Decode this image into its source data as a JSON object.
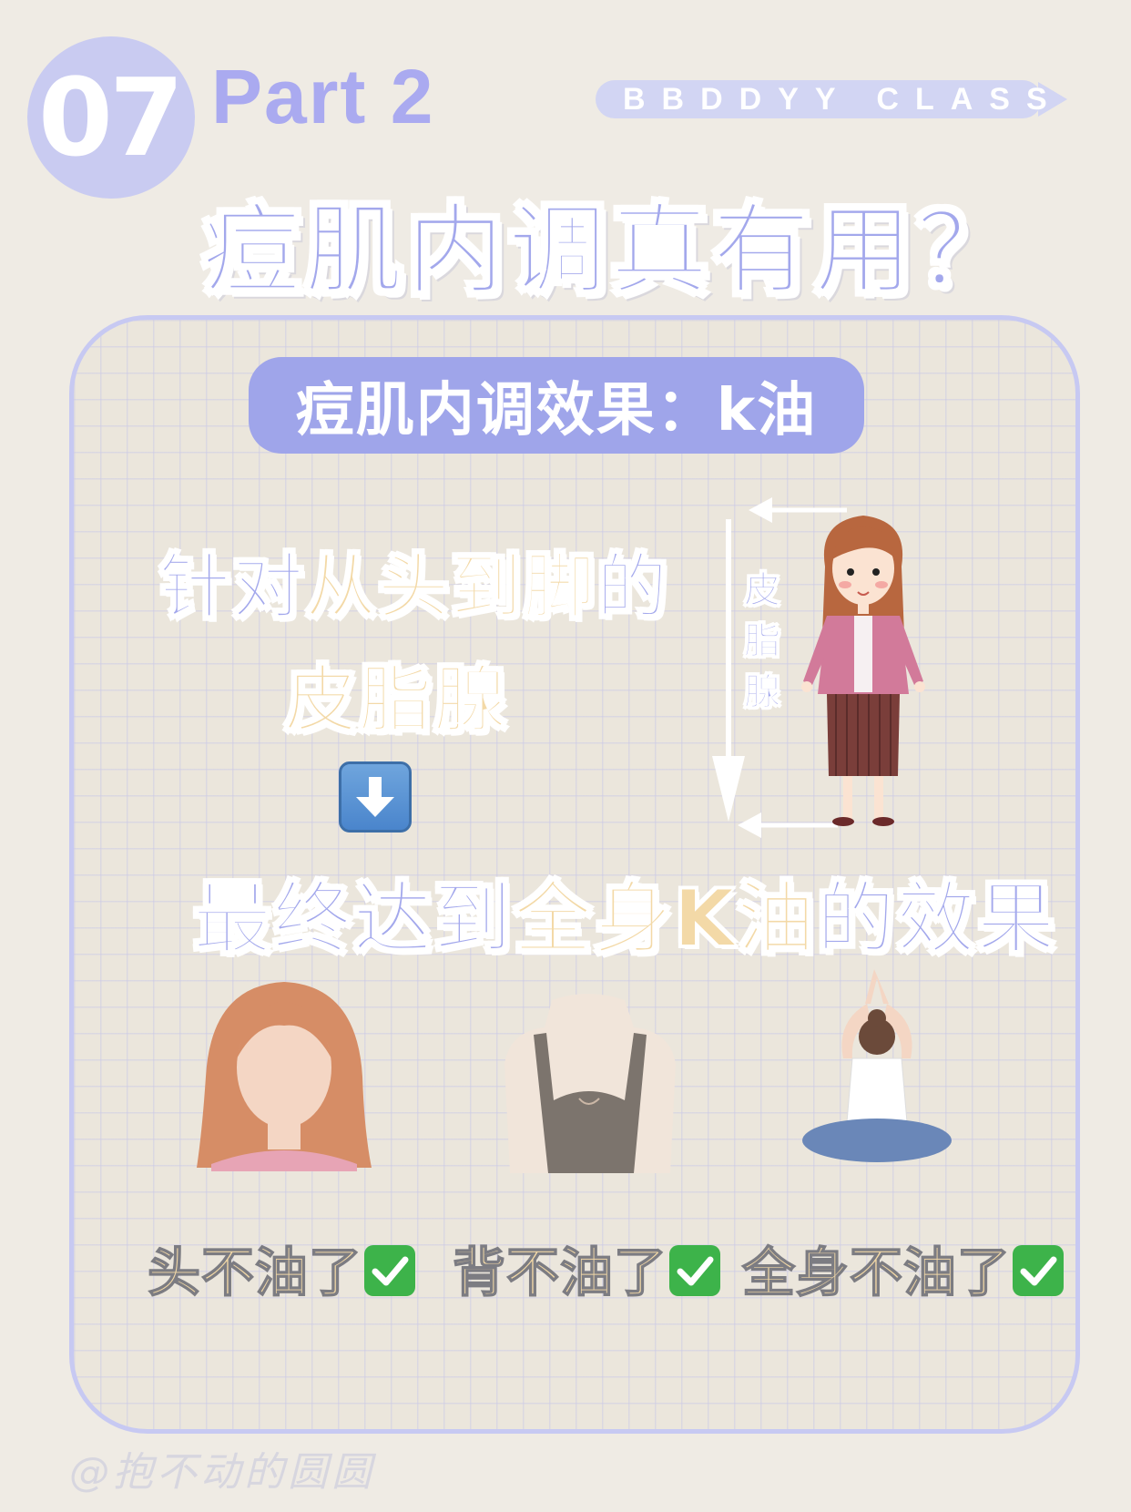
{
  "header": {
    "number": "07",
    "part": "Part 2",
    "class_tag": "BBDDYY CLASS",
    "title": "痘肌内调真有用？"
  },
  "card": {
    "banner": "痘肌内调效果：k油",
    "line1": {
      "a": "针对",
      "b": "从头到脚",
      "c": "的"
    },
    "line2": "皮脂腺",
    "arrow_icon": "down-arrow-icon",
    "line3": {
      "a": "最终达到",
      "b": "全身K油",
      "c": "的效果"
    },
    "side_label": [
      "皮",
      "脂",
      "腺"
    ],
    "captions": [
      {
        "text": "头不油了",
        "icon": "check-icon"
      },
      {
        "text": "背不油了",
        "icon": "check-icon"
      },
      {
        "text": "全身不油了",
        "icon": "check-icon"
      }
    ]
  },
  "watermark": "@抱不动的圆圆",
  "colors": {
    "accent_purple": "#a3a8ec",
    "accent_yellow": "#f3d9a7",
    "background": "#efebe4",
    "check_green": "#3db34a"
  }
}
